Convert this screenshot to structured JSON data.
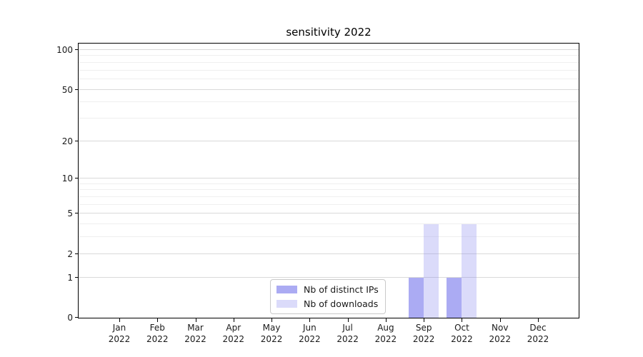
{
  "figure": {
    "background": "#ffffff"
  },
  "chart_data": {
    "type": "bar",
    "title": "sensitivity 2022",
    "scale": "log1p",
    "categories": [
      "Jan",
      "Feb",
      "Mar",
      "Apr",
      "May",
      "Jun",
      "Jul",
      "Aug",
      "Sep",
      "Oct",
      "Nov",
      "Dec"
    ],
    "category_sublabel": "2022",
    "series": [
      {
        "name": "Nb of distinct IPs",
        "color": "rgba(136,136,238,0.7)",
        "values": [
          0,
          0,
          0,
          0,
          0,
          0,
          0,
          0,
          1,
          1,
          0,
          0
        ]
      },
      {
        "name": "Nb of downloads",
        "color": "rgba(136,136,238,0.3)",
        "values": [
          0,
          0,
          0,
          0,
          0,
          0,
          0,
          0,
          4,
          4,
          0,
          0
        ]
      }
    ],
    "y_major_ticks": [
      0,
      1,
      2,
      5,
      10,
      20,
      50,
      100
    ],
    "y_minor_ticks": [
      3,
      4,
      6,
      7,
      8,
      9,
      30,
      40,
      60,
      70,
      80,
      90
    ],
    "ylim": [
      0,
      112
    ],
    "xlabel": "",
    "ylabel": "",
    "grid": "horizontal",
    "legend_position": "inside-bottom-center"
  },
  "colors": {
    "grid_major": "#d9d9d9",
    "grid_minor": "#efefef",
    "axis": "#000000",
    "text": "#1a1a1a",
    "legend_border": "#c9c9c9"
  }
}
